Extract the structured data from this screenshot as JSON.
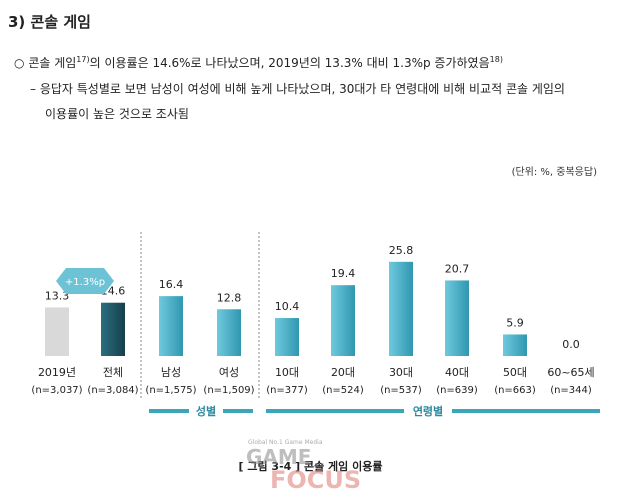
{
  "heading": "3) 콘솔 게임",
  "bullet": {
    "mark": "○",
    "text_a": "콘솔 게임",
    "footnote_a": "17)",
    "text_b": "의 이용률은 14.6%로 나타났으며, 2019년의 13.3% 대비 1.3%p 증가하였음",
    "footnote_b": "18)"
  },
  "sub_bullet": {
    "mark": "–",
    "line1": "응답자 특성별로 보면 남성이 여성에 비해 높게 나타났으며, 30대가 타 연령대에 비해 비교적 콘솔 게임의",
    "line2": "이용률이 높은 것으로 조사됨"
  },
  "unit_note": "(단위: %, 중복응답)",
  "chart_data": {
    "type": "bar",
    "title": "",
    "xlabel": "",
    "ylabel": "",
    "ylim": [
      0,
      30
    ],
    "grid": false,
    "legend": "none",
    "categories": [
      "2019년",
      "전체",
      "남성",
      "여성",
      "10대",
      "20대",
      "30대",
      "40대",
      "50대",
      "60~65세"
    ],
    "n_labels": [
      "(n=3,037)",
      "(n=3,084)",
      "(n=1,575)",
      "(n=1,509)",
      "(n=377)",
      "(n=524)",
      "(n=537)",
      "(n=639)",
      "(n=663)",
      "(n=344)"
    ],
    "values": [
      13.3,
      14.6,
      16.4,
      12.8,
      10.4,
      19.4,
      25.8,
      20.7,
      5.9,
      0.0
    ],
    "value_labels": [
      "13.3",
      "14.6",
      "16.4",
      "12.8",
      "10.4",
      "19.4",
      "25.8",
      "20.7",
      "5.9",
      "0.0"
    ],
    "bar_styles": [
      "prior",
      "total",
      "group",
      "group",
      "group",
      "group",
      "group",
      "group",
      "group",
      "group"
    ],
    "groups": [
      {
        "label": "성별",
        "categories": [
          "남성",
          "여성"
        ]
      },
      {
        "label": "연령별",
        "categories": [
          "10대",
          "20대",
          "30대",
          "40대",
          "50대",
          "60~65세"
        ]
      }
    ],
    "annotation": "+1.3%p",
    "colors": {
      "prior": "#d9d9d9",
      "total": "#1f5566",
      "group": "#4ab3cc",
      "group_rule": "#3aa6b8",
      "badge": "#6cc3d6",
      "separator": "#8a8a8a"
    }
  },
  "caption": "[ 그림 3-4 ] 콘솔 게임 이용률",
  "watermark": {
    "tagline": "Global No.1 Game Media",
    "word1": "GAME",
    "word2": "FOCUS"
  }
}
